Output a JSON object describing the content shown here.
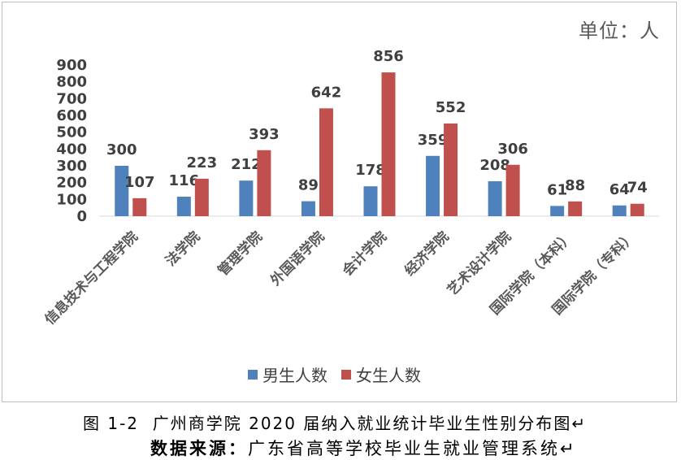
{
  "chart_data": {
    "type": "bar",
    "unit_label": "单位：人",
    "categories": [
      "信息技术与工程学院",
      "法学院",
      "管理学院",
      "外国语学院",
      "会计学院",
      "经济学院",
      "艺术设计学院",
      "国际学院（本科）",
      "国际学院（专科）"
    ],
    "series": [
      {
        "name": "男生人数",
        "color": "#4F81BD",
        "values": [
          300,
          116,
          212,
          89,
          178,
          359,
          208,
          61,
          64
        ]
      },
      {
        "name": "女生人数",
        "color": "#C0504D",
        "values": [
          107,
          223,
          393,
          642,
          856,
          552,
          306,
          88,
          74
        ]
      }
    ],
    "ylim": [
      0,
      900
    ],
    "yticks": [
      0,
      100,
      200,
      300,
      400,
      500,
      600,
      700,
      800,
      900
    ],
    "grid": false,
    "data_labels": true,
    "legend": "bottom"
  },
  "caption": {
    "figure": "图 1-2  广州商学院 2020 届纳入就业统计毕业生性别分布图↵",
    "source_label": "数据来源：",
    "source_text": "广东省高等学校毕业生就业管理系统↵"
  }
}
